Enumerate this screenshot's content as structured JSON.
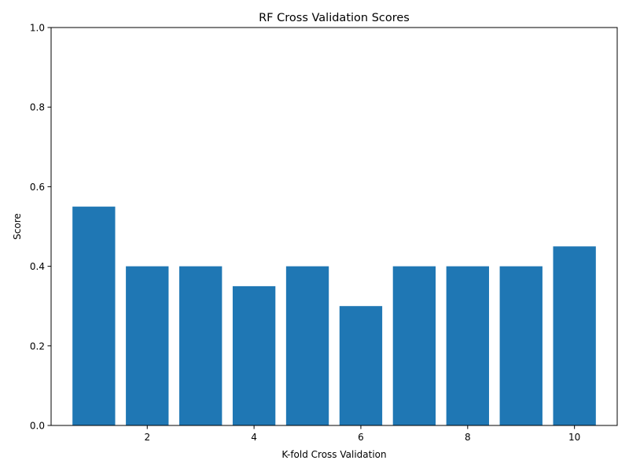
{
  "chart_data": {
    "type": "bar",
    "title": "RF Cross Validation Scores",
    "xlabel": "K-fold Cross Validation",
    "ylabel": "Score",
    "x": [
      1,
      2,
      3,
      4,
      5,
      6,
      7,
      8,
      9,
      10
    ],
    "values": [
      0.55,
      0.4,
      0.4,
      0.35,
      0.4,
      0.3,
      0.4,
      0.4,
      0.4,
      0.45
    ],
    "xlim": [
      0.2,
      10.8
    ],
    "ylim": [
      0.0,
      1.0
    ],
    "xticks": [
      2,
      4,
      6,
      8,
      10
    ],
    "yticks": [
      0.0,
      0.2,
      0.4,
      0.6,
      0.8,
      1.0
    ],
    "xtick_labels": [
      "2",
      "4",
      "6",
      "8",
      "10"
    ],
    "ytick_labels": [
      "0.0",
      "0.2",
      "0.4",
      "0.6",
      "0.8",
      "1.0"
    ],
    "bar_color": "#1f77b4",
    "grid": false,
    "legend": "none"
  }
}
